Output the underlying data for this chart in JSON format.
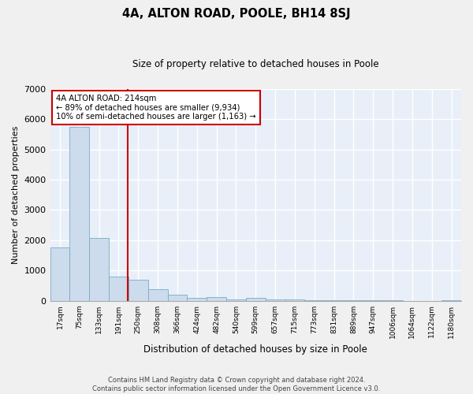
{
  "title": "4A, ALTON ROAD, POOLE, BH14 8SJ",
  "subtitle": "Size of property relative to detached houses in Poole",
  "xlabel": "Distribution of detached houses by size in Poole",
  "ylabel": "Number of detached properties",
  "bar_color": "#ccdcec",
  "bar_edge_color": "#7aaac8",
  "categories": [
    "17sqm",
    "75sqm",
    "133sqm",
    "191sqm",
    "250sqm",
    "308sqm",
    "366sqm",
    "424sqm",
    "482sqm",
    "540sqm",
    "599sqm",
    "657sqm",
    "715sqm",
    "773sqm",
    "831sqm",
    "889sqm",
    "947sqm",
    "1006sqm",
    "1064sqm",
    "1122sqm",
    "1180sqm"
  ],
  "values": [
    1750,
    5750,
    2080,
    800,
    700,
    370,
    210,
    100,
    110,
    55,
    95,
    45,
    55,
    15,
    10,
    8,
    6,
    5,
    4,
    4,
    5
  ],
  "vline_x": 3.45,
  "vline_color": "#cc0000",
  "annotation_text": "4A ALTON ROAD: 214sqm\n← 89% of detached houses are smaller (9,934)\n10% of semi-detached houses are larger (1,163) →",
  "annotation_box_color": "#ffffff",
  "annotation_box_edge": "#cc0000",
  "ylim": [
    0,
    7000
  ],
  "yticks": [
    0,
    1000,
    2000,
    3000,
    4000,
    5000,
    6000,
    7000
  ],
  "background_color": "#e8eff8",
  "grid_color": "#ffffff",
  "fig_bg_color": "#f0f0f0",
  "footer_line1": "Contains HM Land Registry data © Crown copyright and database right 2024.",
  "footer_line2": "Contains public sector information licensed under the Open Government Licence v3.0."
}
